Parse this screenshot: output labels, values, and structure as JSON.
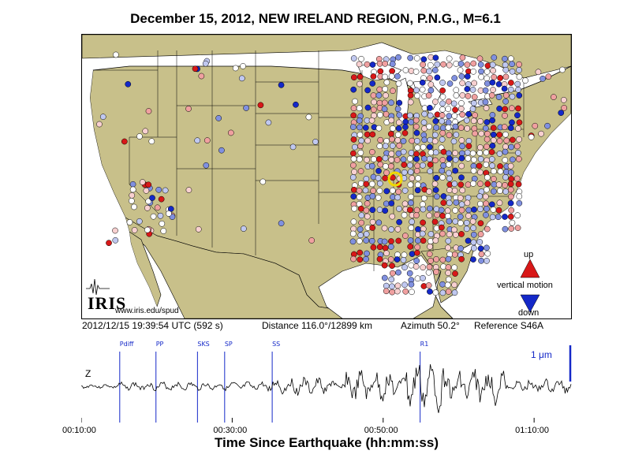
{
  "header": {
    "title": "December 15, 2012, NEW IRELAND REGION, P.N.G., M=6.1"
  },
  "map": {
    "logo_text": "IRIS",
    "logo_url": "www.iris.edu/spud",
    "legend": {
      "up_label": "up",
      "motion_label": "vertical motion",
      "down_label": "down"
    },
    "colors": {
      "land": "#c8c08a",
      "water": "#ffffff",
      "border": "#000000",
      "up": "#d81818",
      "down": "#1428c8",
      "selected_ring": "#f0d800"
    },
    "selected_station": "S46A"
  },
  "info": {
    "time": "2012/12/15 19:39:54 UTC (592 s)",
    "distance": "Distance 116.0°/12899 km",
    "azimuth": "Azimuth  50.2°",
    "reference": "Reference S46A"
  },
  "chart_data": {
    "type": "line",
    "component_label": "Z",
    "scale_label": "1 μm",
    "x_range": [
      "00:10:00",
      "01:15:00"
    ],
    "x_ticks": [
      "00:10:00",
      "00:30:00",
      "00:50:00",
      "01:10:00"
    ],
    "xlabel": "Time Since Earthquake (hh:mm:ss)",
    "phases": [
      {
        "name": "Pdiff",
        "time_min": 15.1
      },
      {
        "name": "PP",
        "time_min": 19.9
      },
      {
        "name": "SKS",
        "time_min": 25.4
      },
      {
        "name": "SP",
        "time_min": 29.0
      },
      {
        "name": "SS",
        "time_min": 35.3
      },
      {
        "name": "R1",
        "time_min": 54.9
      }
    ]
  }
}
